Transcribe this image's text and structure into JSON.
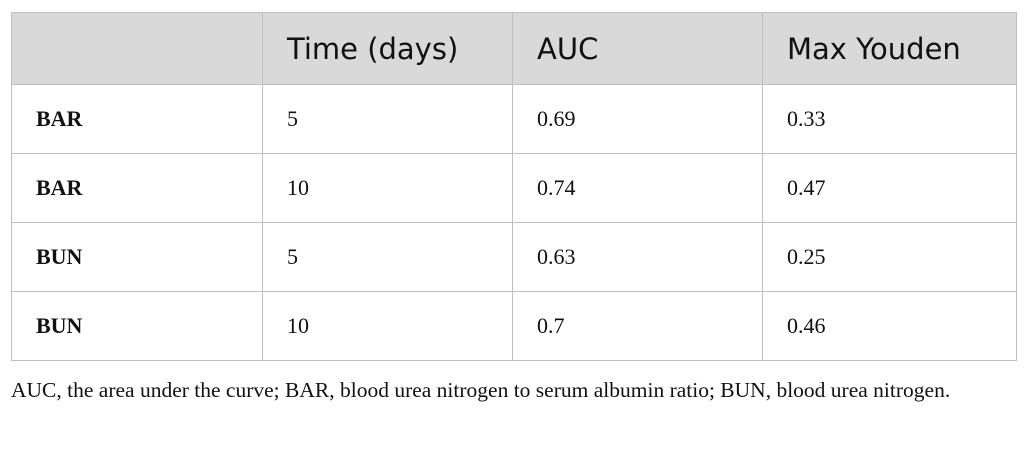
{
  "table": {
    "header": [
      "Time (days)",
      "AUC",
      "Max Youden"
    ],
    "rows": [
      [
        "BAR",
        5,
        0.69,
        0.33
      ],
      [
        "BAR",
        10,
        0.74,
        0.47
      ],
      [
        "BUN",
        5,
        0.63,
        0.25
      ],
      [
        "BUN",
        10,
        0.7,
        0.46
      ]
    ]
  },
  "footnote": "AUC, the area under the curve; BAR, blood urea nitrogen to serum albumin ratio; BUN, blood urea nitrogen."
}
